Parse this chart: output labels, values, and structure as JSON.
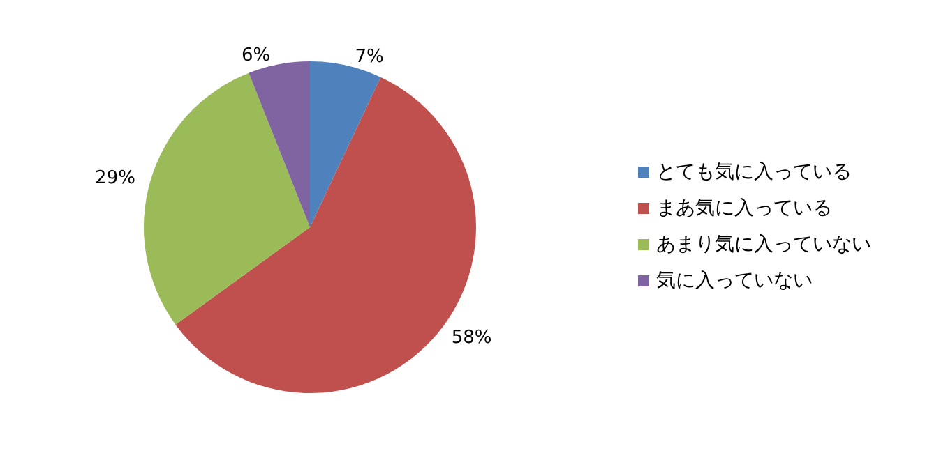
{
  "chart_data": {
    "type": "pie",
    "categories": [
      "とても気に入っている",
      "まあ気に入っている",
      "あまり気に入っていない",
      "気に入っていない"
    ],
    "values": [
      7,
      58,
      29,
      6
    ],
    "colors": [
      "#4f81bd",
      "#c0504d",
      "#9bbb59",
      "#8064a2"
    ],
    "value_labels": [
      "7%",
      "58%",
      "29%",
      "6%"
    ],
    "legend": "right"
  }
}
